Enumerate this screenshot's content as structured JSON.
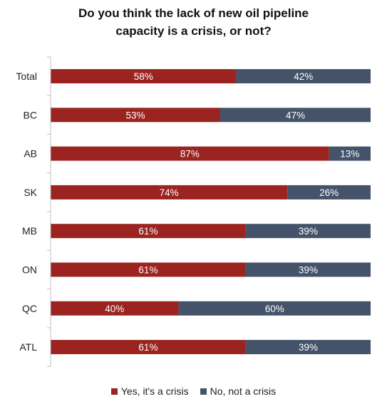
{
  "chart_data": {
    "type": "bar",
    "orientation": "horizontal",
    "stacked": true,
    "title": [
      "Do you think the lack of new oil pipeline",
      "capacity is a crisis, or not?"
    ],
    "categories": [
      "Total",
      "BC",
      "AB",
      "SK",
      "MB",
      "ON",
      "QC",
      "ATL"
    ],
    "series": [
      {
        "name": "Yes, it's a crisis",
        "color": "#9b2421",
        "values": [
          58,
          53,
          87,
          74,
          61,
          61,
          40,
          61
        ],
        "labels": [
          "58%",
          "53%",
          "87%",
          "74%",
          "61%",
          "61%",
          "40%",
          "61%"
        ]
      },
      {
        "name": "No, not a crisis",
        "color": "#44536a",
        "values": [
          42,
          47,
          13,
          26,
          39,
          39,
          60,
          39
        ],
        "labels": [
          "42%",
          "47%",
          "13%",
          "26%",
          "39%",
          "39%",
          "60%",
          "39%"
        ]
      }
    ],
    "xlim": [
      0,
      100
    ],
    "legend_position": "bottom",
    "grid": false
  }
}
